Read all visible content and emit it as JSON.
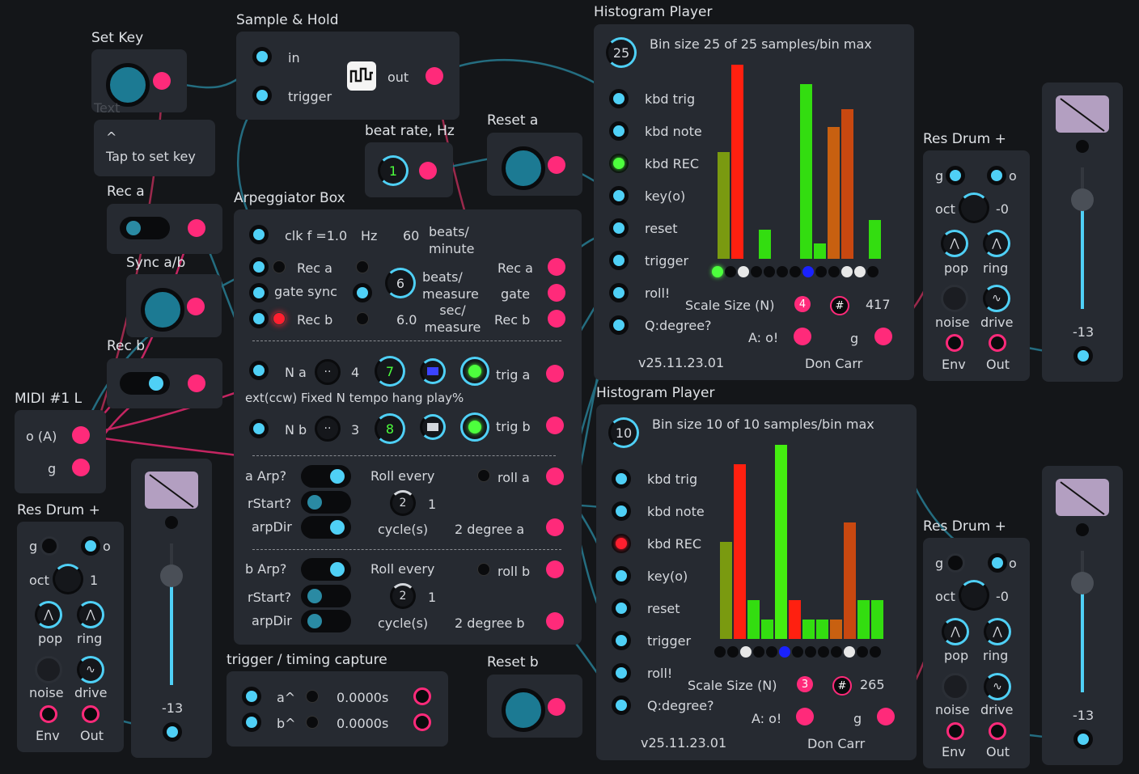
{
  "set_key": {
    "title": "Set Key",
    "text_placeholder": "Text",
    "hint_arrow": "^",
    "hint": "Tap to set key"
  },
  "sample_hold": {
    "title": "Sample & Hold",
    "in": "in",
    "trigger": "trigger",
    "out": "out"
  },
  "beat_rate": {
    "title": "beat rate, Hz",
    "value": "1"
  },
  "reset_a": {
    "title": "Reset a"
  },
  "reset_b": {
    "title": "Reset b"
  },
  "rec_a": {
    "title": "Rec a"
  },
  "sync_ab": {
    "title": "Sync a/b"
  },
  "rec_b": {
    "title": "Rec b"
  },
  "midi": {
    "title": "MIDI #1 L",
    "o": "o (A)",
    "g": "g"
  },
  "arp": {
    "title": "Arpeggiator Box",
    "clk": "clk f =1.0",
    "hz": "Hz",
    "sixty": "60",
    "beats_minute": "beats/ minute",
    "rec_a": "Rec  a",
    "gate_sync": "gate  sync",
    "rec_b": "Rec  b",
    "beats_value": "6",
    "beats_measure": "beats/ measure",
    "sec_value": "6.0",
    "sec_measure": "sec/ measure",
    "out_rec_a": "Rec  a",
    "out_gate": "gate",
    "out_rec_b": "Rec  b",
    "na_label": "N a",
    "na_value": "4",
    "tempo_a": "7",
    "trig_a": "trig a",
    "ext_row": "ext(ccw) Fixed N  tempo hang play%",
    "nb_label": "N b",
    "nb_value": "3",
    "tempo_b": "8",
    "trig_b": "trig b",
    "a_arp": "a   Arp?",
    "a_rstart": "rStart?",
    "a_arpdir": "arpDir",
    "a_roll_every": "Roll every",
    "a_roll": "roll a",
    "a_roll_val": "2",
    "a_one": "1",
    "a_cycles": "cycle(s)",
    "a_degree": "2  degree a",
    "b_arp": "b   Arp?",
    "b_rstart": "rStart?",
    "b_arpdir": "arpDir",
    "b_roll_every": "Roll every",
    "b_roll": "roll b",
    "b_roll_val": "2",
    "b_one": "1",
    "b_cycles": "cycle(s)",
    "b_degree": "2  degree b"
  },
  "trigger_capture": {
    "title": "trigger / timing capture",
    "a": "a^",
    "b": "b^",
    "a_val": "0.0000s",
    "b_val": "0.0000s"
  },
  "hist1": {
    "title": "Histogram Player",
    "bin_knob": "25",
    "header": "Bin size  25  of  25  samples/bin max",
    "inputs": [
      "kbd trig",
      "kbd note",
      "kbd REC",
      "key(o)",
      "reset",
      "trigger",
      "roll!",
      "Q:degree?"
    ],
    "scale_size": "Scale Size (N)",
    "scale_n": "4",
    "hash": "#",
    "count": "417",
    "a_o": "A: o!",
    "g": "g",
    "version": "v25.11.23.01",
    "author": "Don Carr",
    "bars": [
      0.55,
      1.0,
      0,
      0.15,
      0,
      0,
      0.9,
      0.08,
      0.68,
      0.77,
      0,
      0.2
    ]
  },
  "hist2": {
    "title": "Histogram Player",
    "bin_knob": "10",
    "header": "Bin size  10  of  10  samples/bin max",
    "inputs": [
      "kbd trig",
      "kbd note",
      "kbd REC",
      "key(o)",
      "reset",
      "trigger",
      "roll!",
      "Q:degree?"
    ],
    "scale_size": "Scale Size (N)",
    "scale_n": "3",
    "hash": "#",
    "count": "265",
    "a_o": "A: o!",
    "g": "g",
    "version": "v25.11.23.01",
    "author": "Don Carr",
    "bars": [
      0.5,
      0.9,
      0.2,
      0.1,
      1.0,
      0.2,
      0.1,
      0.1,
      0.1,
      0.6,
      0.2,
      0.2
    ]
  },
  "resdrum1": {
    "title": "Res Drum +",
    "g": "g",
    "o": "o",
    "oct": "oct",
    "oct_val": "1",
    "pop": "pop",
    "ring": "ring",
    "noise": "noise",
    "drive": "drive",
    "env": "Env",
    "out": "Out"
  },
  "resdrum2": {
    "title": "Res Drum +",
    "g": "g",
    "o": "o",
    "oct": "oct",
    "oct_val": "-0",
    "pop": "pop",
    "ring": "ring",
    "noise": "noise",
    "drive": "drive",
    "env": "Env",
    "out": "Out"
  },
  "resdrum3": {
    "title": "Res Drum +",
    "g": "g",
    "o": "o",
    "oct": "oct",
    "oct_val": "-0",
    "pop": "pop",
    "ring": "ring",
    "noise": "noise",
    "drive": "drive",
    "env": "Env",
    "out": "Out"
  },
  "slider1": {
    "value": "-13"
  },
  "slider2": {
    "value": "-13"
  },
  "slider3": {
    "value": "-13"
  },
  "colors": {
    "accent": "#4fd0f6",
    "output": "#ff2a7a",
    "red": "#ff1f2f",
    "green": "#4dff3d",
    "orange": "#c85a12"
  }
}
